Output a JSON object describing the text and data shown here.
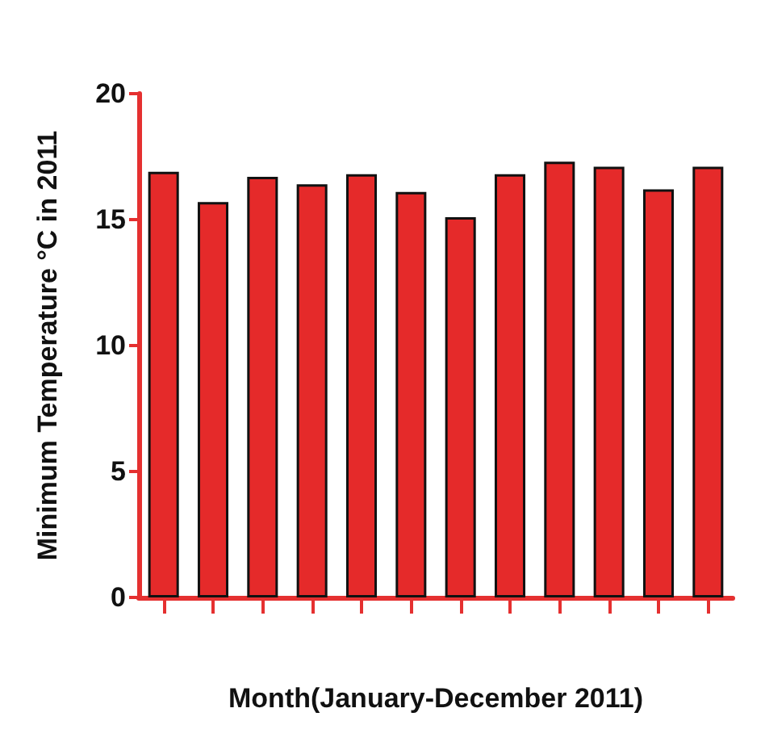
{
  "chart_data": {
    "type": "bar",
    "xlabel": "Month(January-December 2011)",
    "ylabel": "Minimum Temperature °C in 2011",
    "categories": [
      null,
      null,
      null,
      null,
      null,
      null,
      null,
      null,
      null,
      null,
      null,
      null
    ],
    "values": [
      16.9,
      15.7,
      16.7,
      16.4,
      16.8,
      16.1,
      15.1,
      16.8,
      17.3,
      17.1,
      16.2,
      17.1
    ],
    "color": "#e52a2a",
    "ylim": [
      0,
      20
    ],
    "yticks": [
      0,
      5,
      10,
      15,
      20
    ],
    "grid": false
  }
}
